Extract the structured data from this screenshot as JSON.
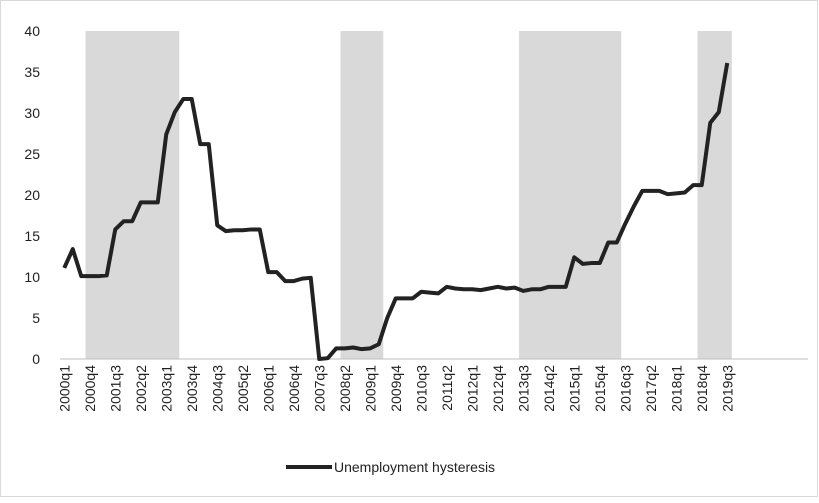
{
  "chart_data": {
    "type": "line",
    "categories": [
      "2000q1",
      null,
      null,
      "2000q4",
      null,
      null,
      "2001q3",
      null,
      null,
      "2002q2",
      null,
      null,
      "2003q1",
      null,
      null,
      "2003q4",
      null,
      null,
      "2004q3",
      null,
      null,
      "2005q2",
      null,
      null,
      "2006q1",
      null,
      null,
      "2006q4",
      null,
      null,
      "2007q3",
      null,
      null,
      "2008q2",
      null,
      null,
      "2009q1",
      null,
      null,
      "2009q4",
      null,
      null,
      "2010q3",
      null,
      null,
      "2011q2",
      null,
      null,
      "2012q1",
      null,
      null,
      "2012q4",
      null,
      null,
      "2013q3",
      null,
      null,
      "2014q2",
      null,
      null,
      "2015q1",
      null,
      null,
      "2015q4",
      null,
      null,
      "2016q3",
      null,
      null,
      "2017q2",
      null,
      null,
      "2018q1",
      null,
      null,
      "2018q4",
      null,
      null,
      "2019q3",
      null,
      null,
      null,
      null,
      null,
      null,
      null,
      null,
      null
    ],
    "series": [
      {
        "name": "Unemployment hysteresis",
        "color": "#222222",
        "values": [
          11.1,
          13.4,
          10.1,
          10.1,
          10.1,
          10.2,
          15.8,
          16.8,
          16.8,
          19.1,
          19.1,
          19.1,
          27.4,
          30.1,
          31.7,
          31.7,
          26.2,
          26.2,
          16.3,
          15.6,
          15.7,
          15.7,
          15.8,
          15.8,
          10.6,
          10.6,
          9.5,
          9.5,
          9.8,
          9.9,
          0,
          0.1,
          1.3,
          1.3,
          1.4,
          1.2,
          1.3,
          1.8,
          5.0,
          7.4,
          7.4,
          7.4,
          8.2,
          8.1,
          8.0,
          8.8,
          8.6,
          8.5,
          8.5,
          8.4,
          8.6,
          8.8,
          8.6,
          8.7,
          8.3,
          8.5,
          8.5,
          8.8,
          8.8,
          8.8,
          12.4,
          11.6,
          11.7,
          11.7,
          14.2,
          14.2,
          16.5,
          18.6,
          20.5,
          20.5,
          20.5,
          20.1,
          20.2,
          20.3,
          21.2,
          21.2,
          28.8,
          30.1,
          36.1,
          null,
          null,
          null,
          null,
          null,
          null,
          null,
          null,
          null
        ]
      },
      {
        "type": "bar",
        "color": "#d9d9d9",
        "values": [
          null,
          null,
          null,
          40,
          40,
          40,
          40,
          40,
          40,
          40,
          40,
          40,
          40,
          40,
          null,
          null,
          null,
          null,
          null,
          null,
          null,
          null,
          null,
          null,
          null,
          null,
          null,
          null,
          null,
          null,
          null,
          null,
          null,
          40,
          40,
          40,
          40,
          40,
          null,
          null,
          null,
          null,
          null,
          null,
          null,
          null,
          null,
          null,
          null,
          null,
          null,
          null,
          null,
          null,
          40,
          40,
          40,
          40,
          40,
          40,
          40,
          40,
          40,
          40,
          40,
          40,
          null,
          null,
          null,
          null,
          null,
          null,
          null,
          null,
          null,
          40,
          40,
          40,
          40,
          null,
          null,
          null,
          null,
          null,
          null,
          null,
          null,
          null
        ]
      }
    ],
    "ylim": [
      0,
      40
    ],
    "yticks": [
      0,
      5,
      10,
      15,
      20,
      25,
      30,
      35,
      40
    ],
    "grid": false,
    "legend": "bottom"
  }
}
